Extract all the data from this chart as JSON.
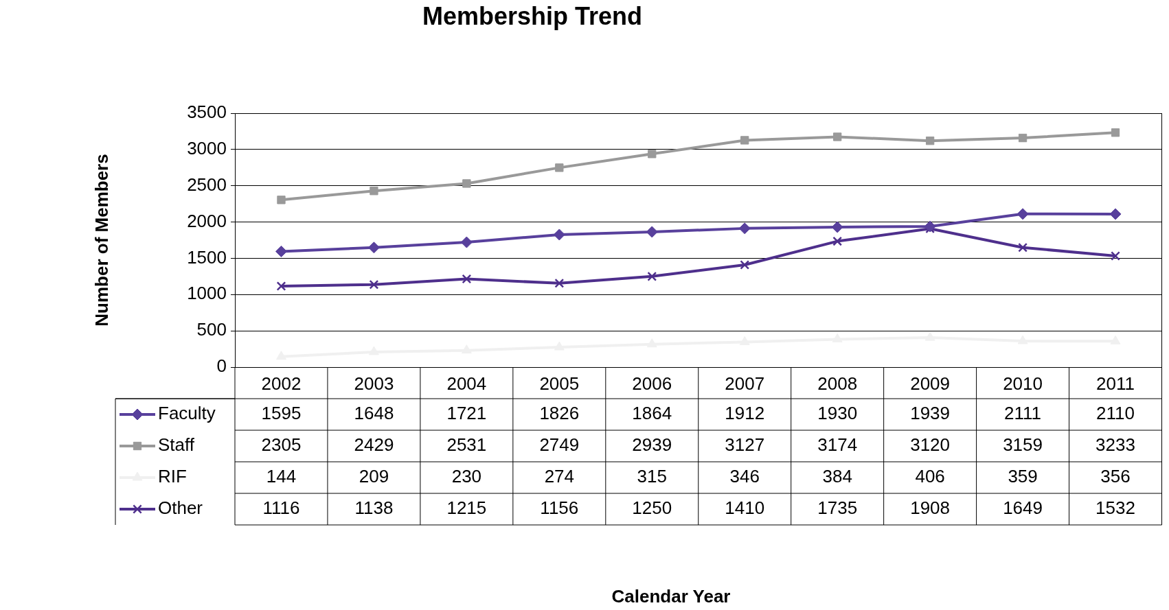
{
  "chart_data": {
    "type": "line",
    "title": "Membership Trend",
    "annotations": [
      "Calendar Year"
    ],
    "ylabel": "Number of Members",
    "categories": [
      "2002",
      "2003",
      "2004",
      "2005",
      "2006",
      "2007",
      "2008",
      "2009",
      "2010",
      "2011"
    ],
    "series": [
      {
        "name": "Faculty",
        "color": "#58409c",
        "marker": "diamond",
        "values": [
          1595,
          1648,
          1721,
          1826,
          1864,
          1912,
          1930,
          1939,
          2111,
          2110
        ]
      },
      {
        "name": "Staff",
        "color": "#999999",
        "marker": "square",
        "values": [
          2305,
          2429,
          2531,
          2749,
          2939,
          3127,
          3174,
          3120,
          3159,
          3233
        ]
      },
      {
        "name": "RIF",
        "color": "#f0f0f0",
        "marker": "triangle",
        "values": [
          144,
          209,
          230,
          274,
          315,
          346,
          384,
          406,
          359,
          356
        ]
      },
      {
        "name": "Other",
        "color": "#4e2f8c",
        "marker": "cross",
        "values": [
          1116,
          1138,
          1215,
          1156,
          1250,
          1410,
          1735,
          1908,
          1649,
          1532
        ]
      }
    ],
    "ylim": [
      0,
      3500
    ],
    "yticks": [
      0,
      500,
      1000,
      1500,
      2000,
      2500,
      3000,
      3500
    ],
    "grid": "y",
    "legend": "bottom",
    "data_labels": true
  }
}
